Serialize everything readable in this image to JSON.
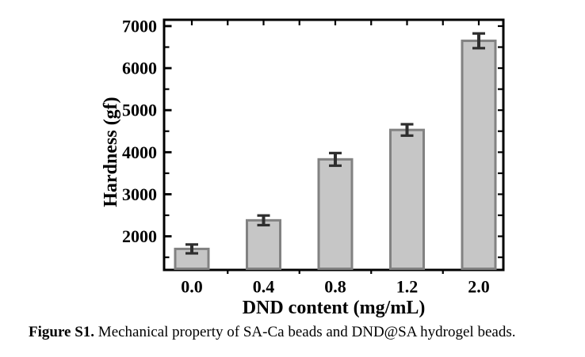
{
  "figure": {
    "caption": {
      "label": "Figure S1.",
      "text": "Mechanical property of SA-Ca beads and DND@SA hydrogel beads."
    }
  },
  "chart_data": {
    "type": "bar",
    "title": "",
    "xlabel": "DND content (mg/mL)",
    "ylabel": "Hardness (gf)",
    "categories": [
      "0.0",
      "0.4",
      "0.8",
      "1.2",
      "2.0"
    ],
    "values": [
      1700,
      2380,
      3830,
      4530,
      6650
    ],
    "errors": [
      105,
      115,
      150,
      135,
      175
    ],
    "ylim": [
      1200,
      7150
    ],
    "yticks_major": [
      2000,
      3000,
      4000,
      5000,
      6000,
      7000
    ],
    "yticks_minor": [
      1500,
      2500,
      3500,
      4500,
      5500,
      6500
    ],
    "grid": false,
    "legend": null,
    "colors": {
      "bar_fill": "#c6c6c6",
      "bar_edge": "#828282",
      "error_bar": "#2e2e2e",
      "axis": "#000000",
      "text": "#000000",
      "background": "#ffffff"
    }
  }
}
